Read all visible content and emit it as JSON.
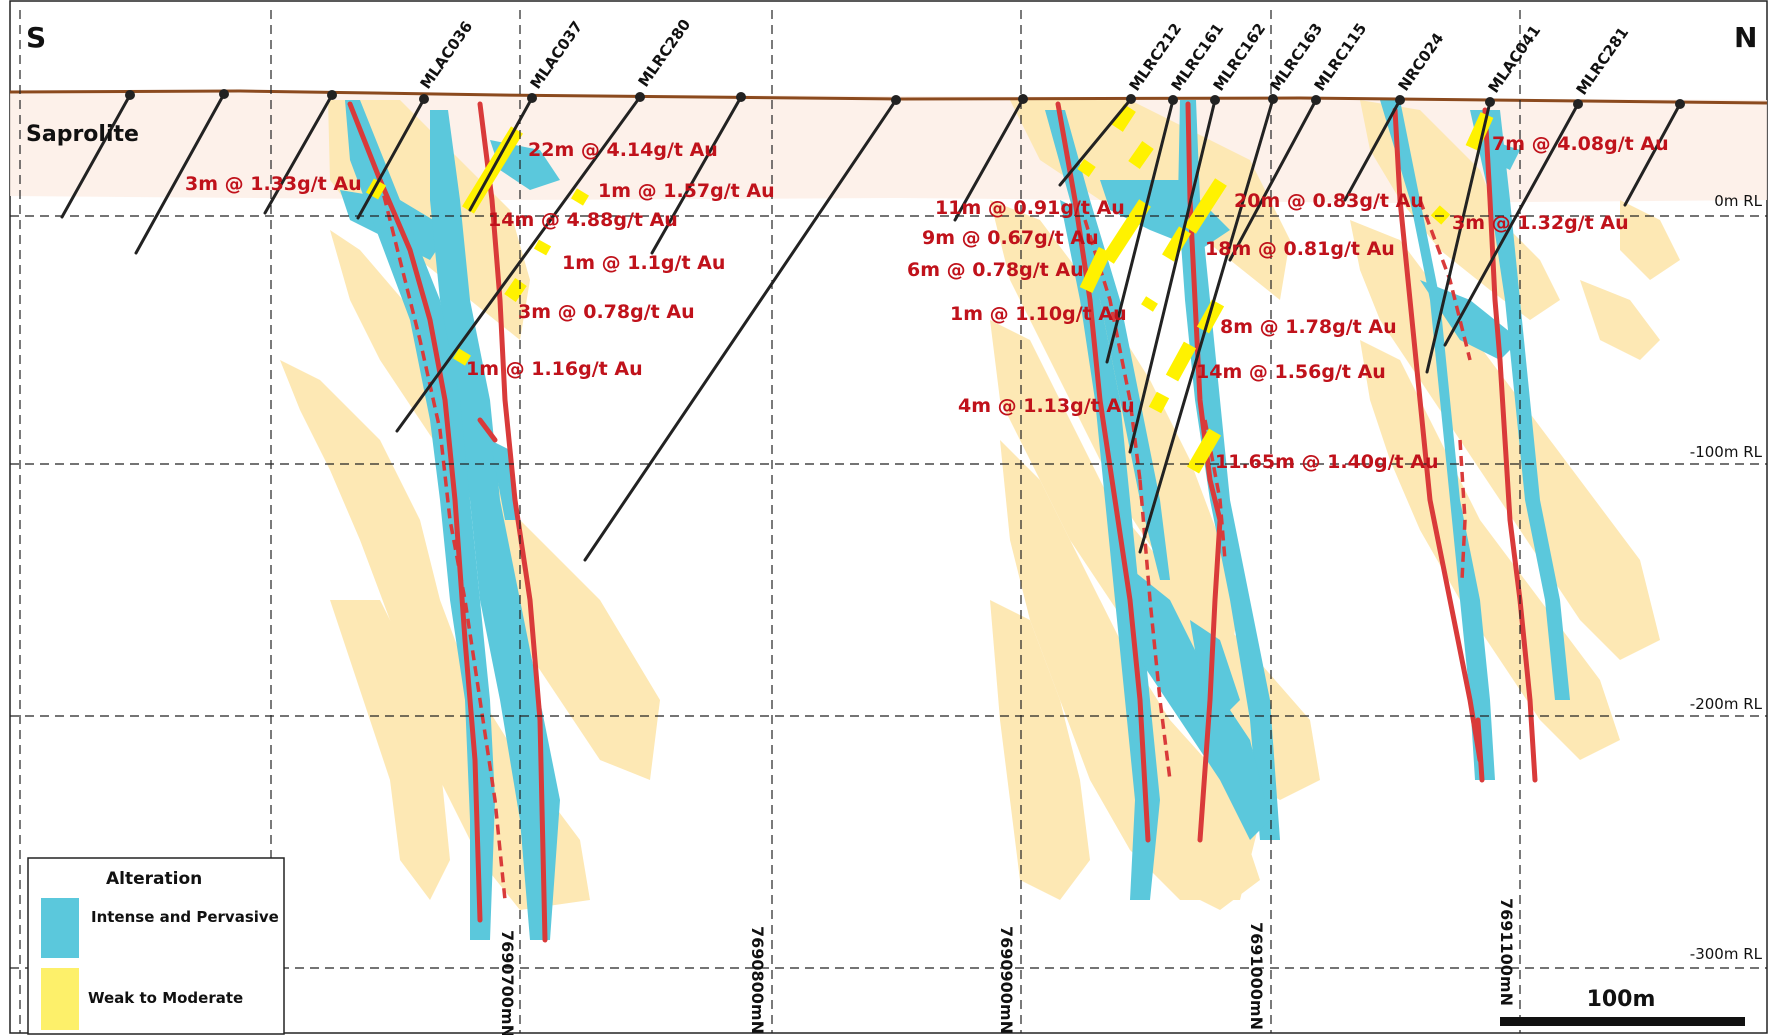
{
  "section": {
    "south_label": "S",
    "north_label": "N",
    "saprolite_label": "Saprolite",
    "scale_label": "100m"
  },
  "rl_labels": [
    "0m RL",
    "-100m RL",
    "-200m RL",
    "-300m RL"
  ],
  "northings": [
    "7690700mN",
    "7690800mN",
    "7690900mN",
    "7691000mN",
    "7691100mN"
  ],
  "drill_holes": [
    "MLAC036",
    "MLAC037",
    "MLRC280",
    "MLRC212",
    "MLRC161",
    "MLRC162",
    "MLRC163",
    "MLRC115",
    "NRC024",
    "MLAC041",
    "MLRC281"
  ],
  "intercepts": [
    "22m @ 4.14g/t Au",
    "1m @ 1.57g/t Au",
    "3m @ 1.33g/t Au",
    "14m @ 4.88g/t Au",
    "1m @ 1.1g/t Au",
    "3m @ 0.78g/t Au",
    "1m @ 1.16g/t Au",
    "11m @ 0.91g/t Au",
    "9m @ 0.67g/t Au",
    "6m @ 0.78g/t Au",
    "1m @ 1.10g/t Au",
    "4m @ 1.13g/t Au",
    "20m @ 0.83g/t Au",
    "18m @ 0.81g/t Au",
    "8m @ 1.78g/t Au",
    "14m @ 1.56g/t Au",
    "11.65m @ 1.40g/t Au",
    "7m @ 4.08g/t Au",
    "3m @ 1.32g/t Au"
  ],
  "legend": {
    "title": "Alteration",
    "items": [
      {
        "label": "Intense and Pervasive",
        "color": "#5bc8dc"
      },
      {
        "label": "Weak to Moderate",
        "color": "#fdf06a"
      }
    ]
  },
  "colors": {
    "weak_alteration": "#fde8b4",
    "intense_alteration": "#5bc8dc",
    "vein": "#d93a3a",
    "mineralised": "#fff200",
    "topography": "#8b4a1e",
    "label": "#c0121b"
  }
}
